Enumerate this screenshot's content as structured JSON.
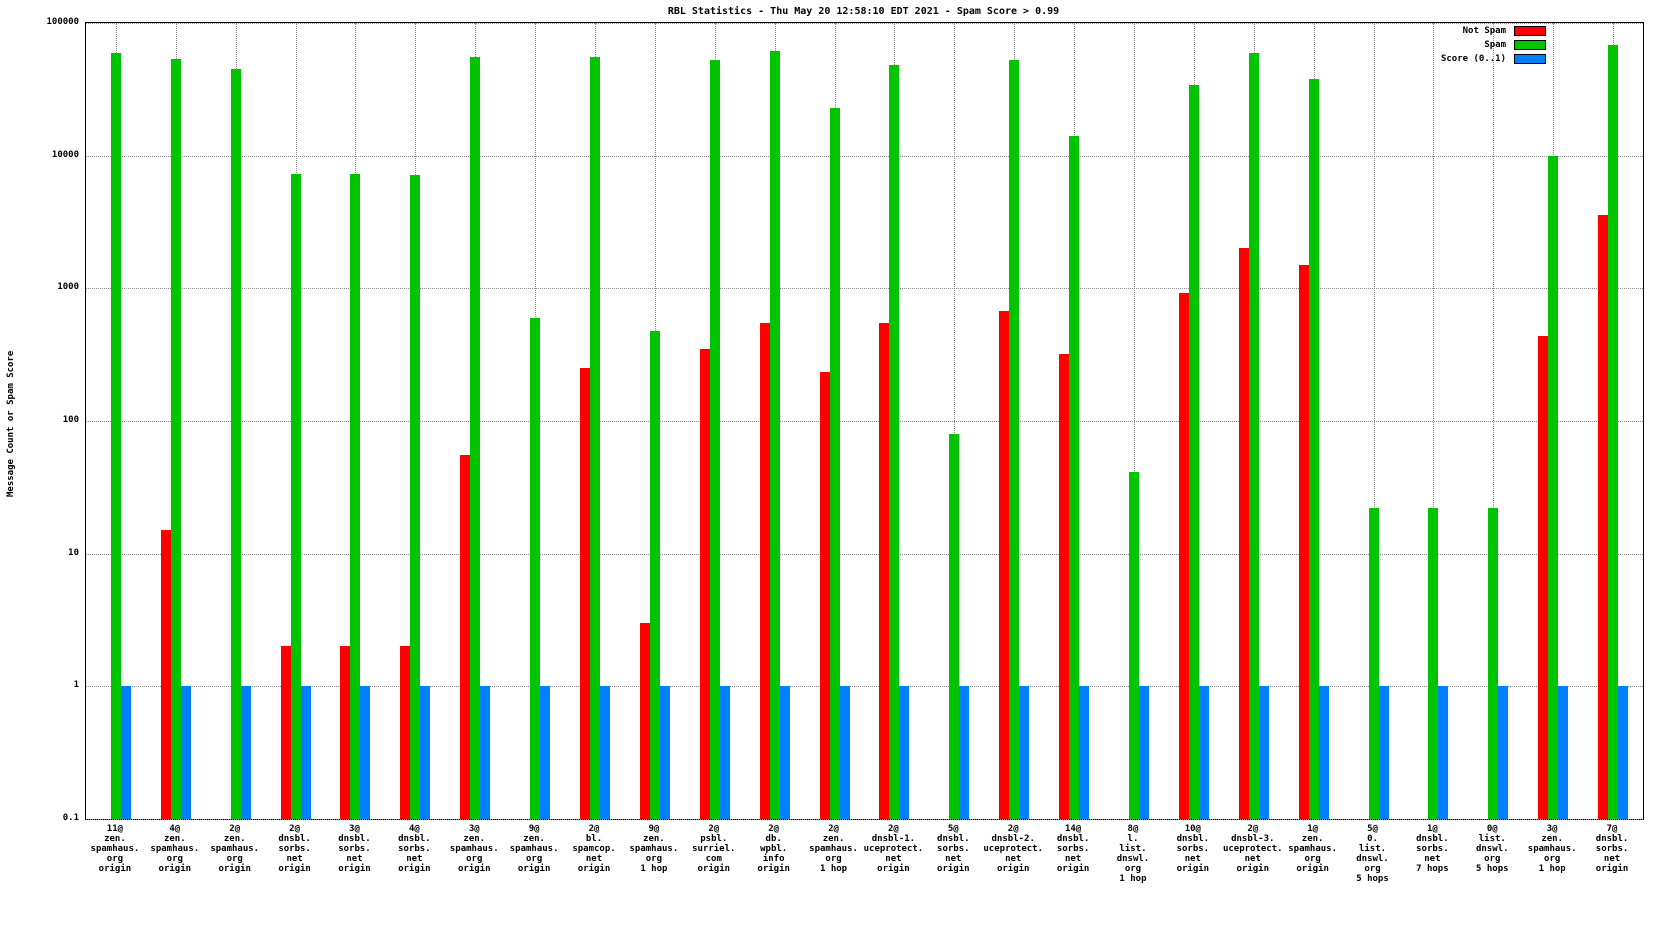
{
  "chart_data": {
    "type": "bar",
    "title": "RBL Statistics - Thu May 20 12:58:10 EDT 2021 - Spam Score > 0.99",
    "ylabel": "Message Count or Spam Score",
    "yscale": "log",
    "ylim": [
      0.1,
      100000
    ],
    "yticks": [
      0.1,
      1,
      10,
      100,
      1000,
      10000,
      100000
    ],
    "ytick_labels": [
      "0.1",
      "1",
      "10",
      "100",
      "1000",
      "10000",
      "100000"
    ],
    "grid": "dotted",
    "legend_position": "top-right",
    "categories": [
      [
        "11@",
        "zen.",
        "spamhaus.",
        "org",
        "origin"
      ],
      [
        "4@",
        "zen.",
        "spamhaus.",
        "org",
        "origin"
      ],
      [
        "2@",
        "zen.",
        "spamhaus.",
        "org",
        "origin"
      ],
      [
        "2@",
        "dnsbl.",
        "sorbs.",
        "net",
        "origin"
      ],
      [
        "3@",
        "dnsbl.",
        "sorbs.",
        "net",
        "origin"
      ],
      [
        "4@",
        "dnsbl.",
        "sorbs.",
        "net",
        "origin"
      ],
      [
        "3@",
        "zen.",
        "spamhaus.",
        "org",
        "origin"
      ],
      [
        "9@",
        "zen.",
        "spamhaus.",
        "org",
        "origin"
      ],
      [
        "2@",
        "bl.",
        "spamcop.",
        "net",
        "origin"
      ],
      [
        "9@",
        "zen.",
        "spamhaus.",
        "org",
        "1 hop"
      ],
      [
        "2@",
        "psbl.",
        "surriel.",
        "com",
        "origin"
      ],
      [
        "2@",
        "db.",
        "wpbl.",
        "info",
        "origin"
      ],
      [
        "2@",
        "zen.",
        "spamhaus.",
        "org",
        "1 hop"
      ],
      [
        "2@",
        "dnsbl-1.",
        "uceprotect.",
        "net",
        "origin"
      ],
      [
        "5@",
        "dnsbl.",
        "sorbs.",
        "net",
        "origin"
      ],
      [
        "2@",
        "dnsbl-2.",
        "uceprotect.",
        "net",
        "origin"
      ],
      [
        "14@",
        "dnsbl.",
        "sorbs.",
        "net",
        "origin"
      ],
      [
        "8@",
        "l.",
        "list.",
        "dnswl.",
        "org",
        "1 hop"
      ],
      [
        "10@",
        "dnsbl.",
        "sorbs.",
        "net",
        "origin"
      ],
      [
        "2@",
        "dnsbl-3.",
        "uceprotect.",
        "net",
        "origin"
      ],
      [
        "1@",
        "zen.",
        "spamhaus.",
        "org",
        "origin"
      ],
      [
        "5@",
        "0.",
        "list.",
        "dnswl.",
        "org",
        "5 hops"
      ],
      [
        "1@",
        "dnsbl.",
        "sorbs.",
        "net",
        "7 hops"
      ],
      [
        "0@",
        "list.",
        "dnswl.",
        "org",
        "5 hops"
      ],
      [
        "3@",
        "zen.",
        "spamhaus.",
        "org",
        "1 hop"
      ],
      [
        "7@",
        "dnsbl.",
        "sorbs.",
        "net",
        "origin"
      ]
    ],
    "series": [
      {
        "name": "Not Spam",
        "color": "#ff0000",
        "values": [
          null,
          15,
          null,
          2,
          2,
          2,
          55,
          null,
          250,
          3,
          350,
          550,
          235,
          550,
          null,
          680,
          320,
          null,
          920,
          2000,
          1500,
          null,
          null,
          null,
          440,
          3600
        ]
      },
      {
        "name": "Spam",
        "color": "#00c400",
        "values": [
          59000,
          54000,
          45000,
          7300,
          7300,
          7200,
          55000,
          600,
          55000,
          480,
          53000,
          62000,
          23000,
          48000,
          80,
          53000,
          14000,
          41,
          34000,
          59000,
          38000,
          22,
          22,
          22,
          10000,
          68000
        ]
      },
      {
        "name": "Score (0..1)",
        "color": "#0080ff",
        "values": [
          1,
          1,
          1,
          1,
          1,
          1,
          1,
          1,
          1,
          1,
          1,
          1,
          1,
          1,
          1,
          1,
          1,
          1,
          1,
          1,
          1,
          1,
          1,
          1,
          1,
          1
        ]
      }
    ]
  }
}
